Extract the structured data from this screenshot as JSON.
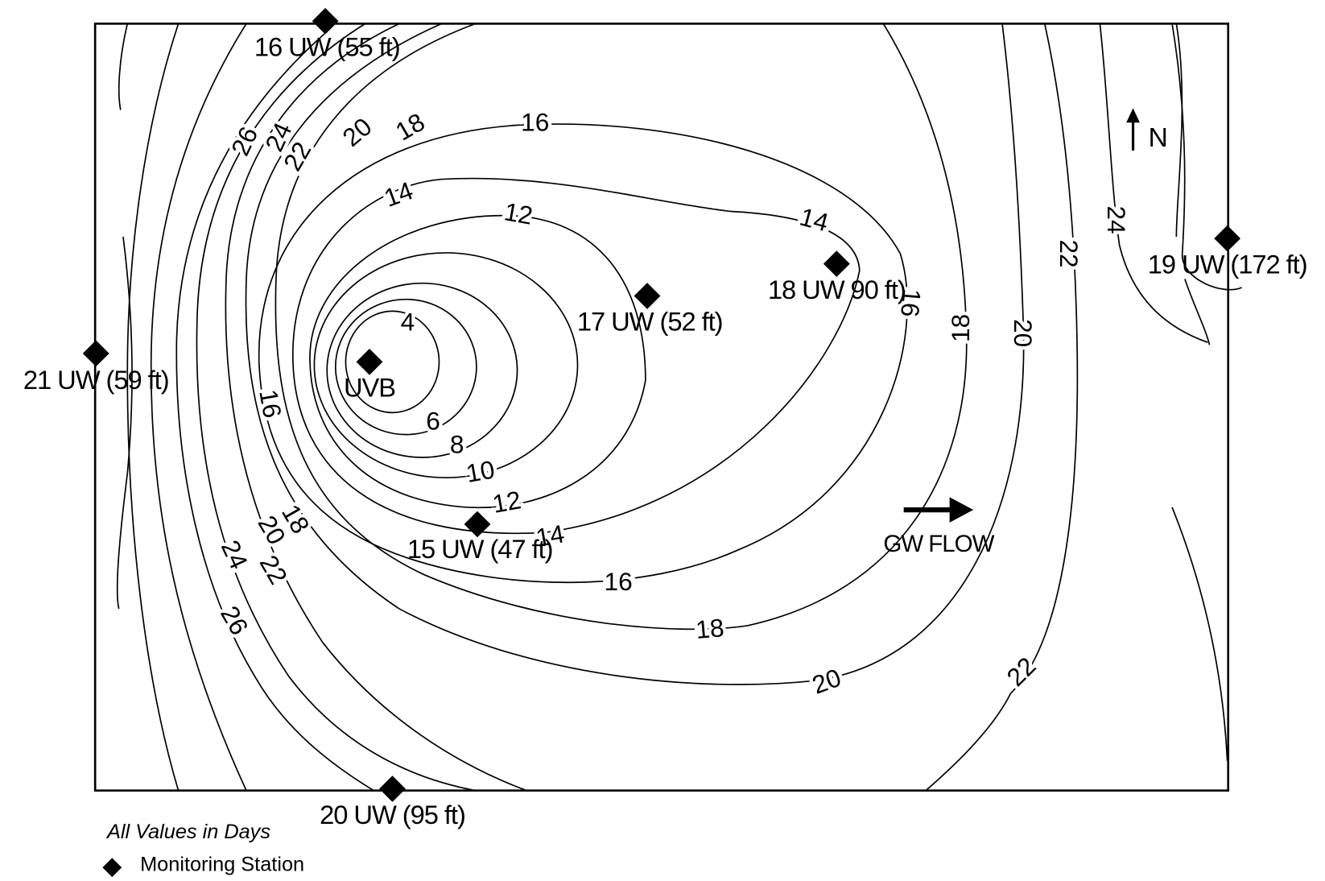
{
  "stations": [
    {
      "label": "16 UW (55 ft)"
    },
    {
      "label": "17 UW (52 ft)"
    },
    {
      "label": "18 UW 90 ft)"
    },
    {
      "label": "19 UW (172 ft)"
    },
    {
      "label": "21 UW (59 ft)"
    },
    {
      "label": "UVB"
    },
    {
      "label": "15 UW (47 ft)"
    },
    {
      "label": "20 UW (95 ft)"
    }
  ],
  "contour_labels": [
    4,
    6,
    8,
    10,
    12,
    12,
    14,
    14,
    14,
    16,
    16,
    16,
    16,
    18,
    18,
    18,
    18,
    20,
    20,
    20,
    20,
    22,
    22,
    22,
    22,
    24,
    24,
    24,
    26,
    26
  ],
  "flow_label": "GW FLOW",
  "north_label": "N",
  "legend": {
    "note": "All Values in Days",
    "marker": "Monitoring Station"
  }
}
